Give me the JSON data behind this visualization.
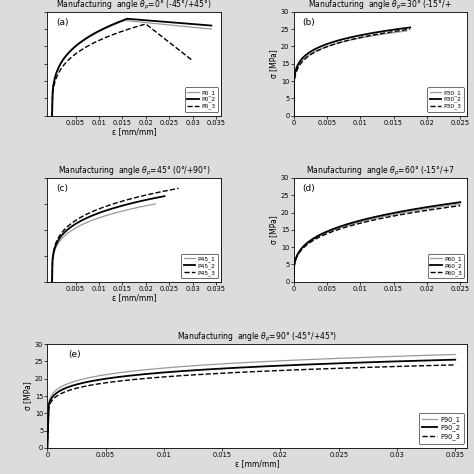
{
  "title_a": "Manufacturing  angle $\\theta_p$=0° (-45°/+45°)",
  "title_b": "Manufacturing  angle $\\theta_p$=30° (-15°/+",
  "title_c": "Manufacturing  angle $\\theta_p$=45° (0°/+90°)",
  "title_d": "Manufacturing  angle $\\theta_p$=60° (-15°/+7",
  "title_e": "Manufacturing  angle $\\theta_p$=90° (-45°/+45°)",
  "xlabel": "ε [mm/mm]",
  "ylabel": "σ [MPa]",
  "bg_color": "#e8e8e8",
  "line_gray": "#aaaaaa",
  "line_black": "#000000",
  "panels": {
    "A": {
      "legend": [
        "P0_1",
        "P0_2",
        "P0_3"
      ],
      "xlim": [
        -0.001,
        0.036
      ],
      "ylim": [
        0,
        30
      ],
      "xticks": [
        0.005,
        0.01,
        0.015,
        0.02,
        0.025,
        0.03,
        0.035
      ],
      "yticks": [
        0,
        5,
        10,
        15,
        20,
        25,
        30
      ],
      "show_ylabel": false,
      "show_xlabel": true,
      "label": "(a)"
    },
    "B": {
      "legend": [
        "P30_1",
        "P30_2",
        "P30_3"
      ],
      "xlim": [
        0,
        0.026
      ],
      "ylim": [
        0,
        30
      ],
      "xticks": [
        0,
        0.005,
        0.01,
        0.015,
        0.02,
        0.025
      ],
      "yticks": [
        0,
        5,
        10,
        15,
        20,
        25,
        30
      ],
      "show_ylabel": true,
      "show_xlabel": false,
      "label": "(b)"
    },
    "C": {
      "legend": [
        "P45_1",
        "P45_2",
        "P45_3"
      ],
      "xlim": [
        -0.001,
        0.036
      ],
      "ylim": [
        0,
        20
      ],
      "xticks": [
        0.005,
        0.01,
        0.015,
        0.02,
        0.025,
        0.03,
        0.035
      ],
      "yticks": [
        0,
        5,
        10,
        15,
        20
      ],
      "show_ylabel": false,
      "show_xlabel": true,
      "label": "(c)"
    },
    "D": {
      "legend": [
        "P60_1",
        "P60_2",
        "P60_3"
      ],
      "xlim": [
        0,
        0.026
      ],
      "ylim": [
        0,
        30
      ],
      "xticks": [
        0,
        0.005,
        0.01,
        0.015,
        0.02,
        0.025
      ],
      "yticks": [
        0,
        5,
        10,
        15,
        20,
        25,
        30
      ],
      "show_ylabel": true,
      "show_xlabel": false,
      "label": "(d)"
    },
    "E": {
      "legend": [
        "P90_1",
        "P90_2",
        "P90_3"
      ],
      "xlim": [
        0,
        0.036
      ],
      "ylim": [
        0,
        30
      ],
      "xticks": [
        0,
        0.005,
        0.01,
        0.015,
        0.02,
        0.025,
        0.03,
        0.035
      ],
      "yticks": [
        0,
        5,
        10,
        15,
        20,
        25,
        30
      ],
      "show_ylabel": true,
      "show_xlabel": true,
      "label": "(e)"
    }
  }
}
